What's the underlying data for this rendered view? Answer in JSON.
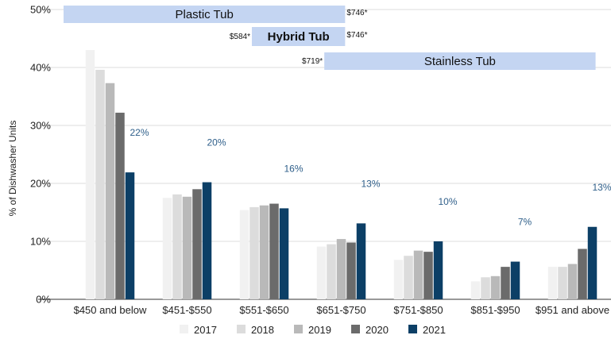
{
  "chart_data": {
    "type": "bar",
    "ylabel": "% of Dishwasher Units",
    "ylim": [
      0,
      50
    ],
    "yticks": [
      "0%",
      "10%",
      "20%",
      "30%",
      "40%",
      "50%"
    ],
    "categories": [
      "$450 and below",
      "$451-$550",
      "$551-$650",
      "$651-$750",
      "$751-$850",
      "$851-$950",
      "$951 and above"
    ],
    "series": [
      {
        "name": "2017",
        "color": "#f1f1f1",
        "values": [
          43,
          17.5,
          15.4,
          9.1,
          6.8,
          3.1,
          5.6
        ]
      },
      {
        "name": "2018",
        "color": "#dcdcdc",
        "values": [
          39.6,
          18.1,
          15.9,
          9.5,
          7.5,
          3.8,
          5.6
        ]
      },
      {
        "name": "2019",
        "color": "#b9b9b9",
        "values": [
          37.3,
          17.7,
          16.2,
          10.4,
          8.4,
          4,
          6.1
        ]
      },
      {
        "name": "2020",
        "color": "#6b6b6b",
        "values": [
          32.2,
          19,
          16.5,
          9.8,
          8.2,
          5.6,
          8.7
        ]
      },
      {
        "name": "2021",
        "color": "#0c3f66",
        "values": [
          21.9,
          20.2,
          15.7,
          13.1,
          10,
          6.5,
          12.5
        ]
      }
    ],
    "data_labels": [
      "22%",
      "20%",
      "16%",
      "13%",
      "10%",
      "7%",
      "13%"
    ],
    "legend_position": "bottom",
    "grid": true,
    "bands": [
      {
        "label": "Plastic Tub",
        "bold": false,
        "start_price": "",
        "end_price": "$746*",
        "from": 0,
        "to": 3.55
      },
      {
        "label": "Hybrid Tub",
        "bold": true,
        "start_price": "$584*",
        "end_price": "$746*",
        "from": 2.34,
        "to": 3.55
      },
      {
        "label": "Stainless Tub",
        "bold": false,
        "start_price": "$719*",
        "end_price": "",
        "from": 3.28,
        "to": 6.8
      }
    ],
    "band_color": "#c4d5f2"
  }
}
